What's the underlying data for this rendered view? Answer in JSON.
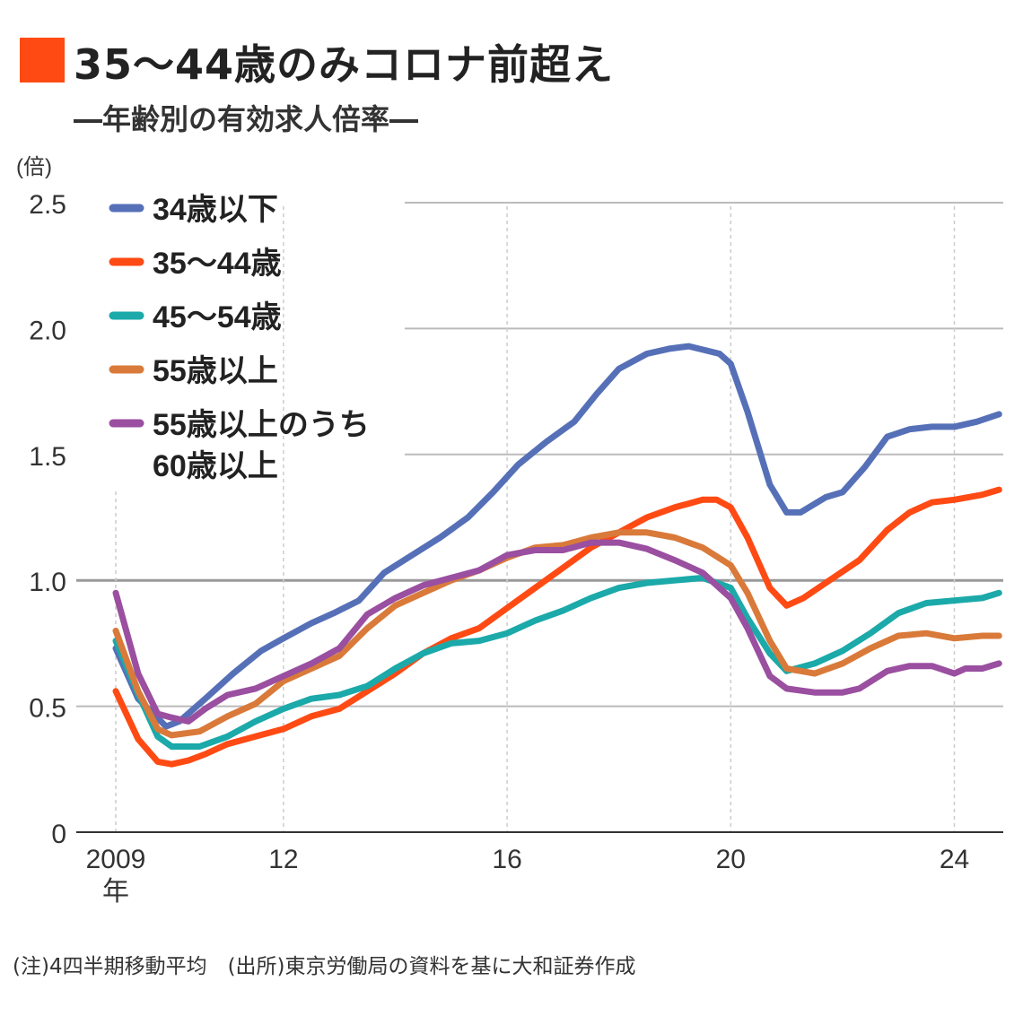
{
  "title": "35〜44歳のみコロナ前超え",
  "subtitle": "―年齢別の有効求人倍率―",
  "footer": "(注)4四半期移動平均　(出所)東京労働局の資料を基に大和証券作成",
  "chart_data": {
    "type": "line",
    "title": "35〜44歳のみコロナ前超え",
    "subtitle": "年齢別の有効求人倍率",
    "ylabel": "(倍)",
    "xlabel": "",
    "ylim": [
      0,
      2.5
    ],
    "xlim": [
      2009,
      2024.8
    ],
    "yticks": [
      {
        "v": 0,
        "label": "0"
      },
      {
        "v": 0.5,
        "label": "0.5"
      },
      {
        "v": 1.0,
        "label": "1.0"
      },
      {
        "v": 1.5,
        "label": "1.5"
      },
      {
        "v": 2.0,
        "label": "2.0"
      },
      {
        "v": 2.5,
        "label": "2.5"
      }
    ],
    "xticks": [
      {
        "v": 2009,
        "label": "2009",
        "sub": "年"
      },
      {
        "v": 2012,
        "label": "12"
      },
      {
        "v": 2016,
        "label": "16"
      },
      {
        "v": 2020,
        "label": "20"
      },
      {
        "v": 2024,
        "label": "24"
      }
    ],
    "grid": true,
    "legend": "top-left",
    "series": [
      {
        "name": "34歳以下",
        "color": "#5670b8",
        "points": [
          [
            2009,
            0.73
          ],
          [
            2009.4,
            0.53
          ],
          [
            2009.9,
            0.42
          ],
          [
            2010.14,
            0.44
          ],
          [
            2010.6,
            0.53
          ],
          [
            2011.1,
            0.63
          ],
          [
            2011.6,
            0.72
          ],
          [
            2012,
            0.77
          ],
          [
            2012.5,
            0.83
          ],
          [
            2012.9,
            0.87
          ],
          [
            2013.35,
            0.92
          ],
          [
            2013.8,
            1.03
          ],
          [
            2014.3,
            1.1
          ],
          [
            2014.8,
            1.17
          ],
          [
            2015.3,
            1.25
          ],
          [
            2015.75,
            1.35
          ],
          [
            2016.2,
            1.46
          ],
          [
            2016.7,
            1.55
          ],
          [
            2017.2,
            1.63
          ],
          [
            2017.6,
            1.74
          ],
          [
            2018,
            1.84
          ],
          [
            2018.5,
            1.9
          ],
          [
            2018.9,
            1.92
          ],
          [
            2019.25,
            1.93
          ],
          [
            2019.8,
            1.9
          ],
          [
            2020,
            1.86
          ],
          [
            2020.3,
            1.67
          ],
          [
            2020.7,
            1.38
          ],
          [
            2021,
            1.27
          ],
          [
            2021.25,
            1.27
          ],
          [
            2021.7,
            1.33
          ],
          [
            2022,
            1.35
          ],
          [
            2022.4,
            1.45
          ],
          [
            2022.8,
            1.57
          ],
          [
            2023.2,
            1.6
          ],
          [
            2023.6,
            1.61
          ],
          [
            2024,
            1.61
          ],
          [
            2024.4,
            1.63
          ],
          [
            2024.8,
            1.66
          ]
        ]
      },
      {
        "name": "35〜44歳",
        "color": "#ff4a14",
        "points": [
          [
            2009,
            0.56
          ],
          [
            2009.4,
            0.37
          ],
          [
            2009.75,
            0.28
          ],
          [
            2010,
            0.27
          ],
          [
            2010.3,
            0.285
          ],
          [
            2010.6,
            0.31
          ],
          [
            2011,
            0.35
          ],
          [
            2011.5,
            0.38
          ],
          [
            2012,
            0.41
          ],
          [
            2012.5,
            0.46
          ],
          [
            2013,
            0.49
          ],
          [
            2013.5,
            0.56
          ],
          [
            2014,
            0.63
          ],
          [
            2014.5,
            0.71
          ],
          [
            2015,
            0.77
          ],
          [
            2015.5,
            0.81
          ],
          [
            2016,
            0.89
          ],
          [
            2016.5,
            0.97
          ],
          [
            2017,
            1.05
          ],
          [
            2017.5,
            1.13
          ],
          [
            2018,
            1.19
          ],
          [
            2018.5,
            1.25
          ],
          [
            2019,
            1.29
          ],
          [
            2019.5,
            1.32
          ],
          [
            2019.75,
            1.32
          ],
          [
            2020,
            1.29
          ],
          [
            2020.3,
            1.17
          ],
          [
            2020.7,
            0.97
          ],
          [
            2021,
            0.9
          ],
          [
            2021.3,
            0.93
          ],
          [
            2021.7,
            0.99
          ],
          [
            2022.3,
            1.08
          ],
          [
            2022.8,
            1.2
          ],
          [
            2023.2,
            1.27
          ],
          [
            2023.6,
            1.31
          ],
          [
            2024,
            1.32
          ],
          [
            2024.5,
            1.34
          ],
          [
            2024.8,
            1.36
          ]
        ]
      },
      {
        "name": "45〜54歳",
        "color": "#1ba9a9",
        "points": [
          [
            2009,
            0.76
          ],
          [
            2009.4,
            0.55
          ],
          [
            2009.75,
            0.38
          ],
          [
            2010,
            0.34
          ],
          [
            2010.5,
            0.34
          ],
          [
            2011,
            0.38
          ],
          [
            2011.5,
            0.44
          ],
          [
            2012,
            0.49
          ],
          [
            2012.5,
            0.53
          ],
          [
            2013,
            0.545
          ],
          [
            2013.5,
            0.58
          ],
          [
            2014,
            0.65
          ],
          [
            2014.5,
            0.71
          ],
          [
            2015,
            0.75
          ],
          [
            2015.5,
            0.76
          ],
          [
            2016,
            0.79
          ],
          [
            2016.5,
            0.84
          ],
          [
            2017,
            0.88
          ],
          [
            2017.5,
            0.93
          ],
          [
            2018,
            0.97
          ],
          [
            2018.5,
            0.99
          ],
          [
            2019,
            1.0
          ],
          [
            2019.5,
            1.01
          ],
          [
            2020,
            0.97
          ],
          [
            2020.3,
            0.85
          ],
          [
            2020.7,
            0.71
          ],
          [
            2021,
            0.64
          ],
          [
            2021.5,
            0.67
          ],
          [
            2022,
            0.72
          ],
          [
            2022.5,
            0.79
          ],
          [
            2023,
            0.87
          ],
          [
            2023.5,
            0.91
          ],
          [
            2024,
            0.92
          ],
          [
            2024.5,
            0.93
          ],
          [
            2024.8,
            0.95
          ]
        ]
      },
      {
        "name": "55歳以上",
        "color": "#d97a3a",
        "points": [
          [
            2009,
            0.8
          ],
          [
            2009.4,
            0.56
          ],
          [
            2009.75,
            0.41
          ],
          [
            2010,
            0.385
          ],
          [
            2010.5,
            0.4
          ],
          [
            2011,
            0.46
          ],
          [
            2011.5,
            0.51
          ],
          [
            2012,
            0.6
          ],
          [
            2012.5,
            0.65
          ],
          [
            2013,
            0.7
          ],
          [
            2013.5,
            0.81
          ],
          [
            2014,
            0.9
          ],
          [
            2014.5,
            0.95
          ],
          [
            2015,
            1.0
          ],
          [
            2015.5,
            1.04
          ],
          [
            2016,
            1.09
          ],
          [
            2016.5,
            1.13
          ],
          [
            2017,
            1.14
          ],
          [
            2017.5,
            1.17
          ],
          [
            2018,
            1.19
          ],
          [
            2018.5,
            1.19
          ],
          [
            2019,
            1.17
          ],
          [
            2019.5,
            1.13
          ],
          [
            2020,
            1.06
          ],
          [
            2020.3,
            0.95
          ],
          [
            2020.7,
            0.76
          ],
          [
            2021,
            0.65
          ],
          [
            2021.5,
            0.63
          ],
          [
            2022,
            0.67
          ],
          [
            2022.5,
            0.73
          ],
          [
            2023,
            0.78
          ],
          [
            2023.5,
            0.79
          ],
          [
            2024,
            0.77
          ],
          [
            2024.5,
            0.78
          ],
          [
            2024.8,
            0.78
          ]
        ]
      },
      {
        "name": "55歳以上のうち\n60歳以上",
        "name_lines": [
          "55歳以上のうち",
          "60歳以上"
        ],
        "color": "#9a4fa0",
        "points": [
          [
            2009,
            0.95
          ],
          [
            2009.4,
            0.63
          ],
          [
            2009.75,
            0.47
          ],
          [
            2010,
            0.455
          ],
          [
            2010.3,
            0.44
          ],
          [
            2010.6,
            0.49
          ],
          [
            2011,
            0.545
          ],
          [
            2011.5,
            0.57
          ],
          [
            2012,
            0.62
          ],
          [
            2012.5,
            0.67
          ],
          [
            2013,
            0.73
          ],
          [
            2013.5,
            0.865
          ],
          [
            2014,
            0.93
          ],
          [
            2014.5,
            0.98
          ],
          [
            2015,
            1.01
          ],
          [
            2015.5,
            1.04
          ],
          [
            2016,
            1.1
          ],
          [
            2016.5,
            1.12
          ],
          [
            2017,
            1.12
          ],
          [
            2017.5,
            1.15
          ],
          [
            2018,
            1.15
          ],
          [
            2018.5,
            1.125
          ],
          [
            2019,
            1.08
          ],
          [
            2019.5,
            1.03
          ],
          [
            2020,
            0.93
          ],
          [
            2020.3,
            0.81
          ],
          [
            2020.7,
            0.62
          ],
          [
            2021,
            0.57
          ],
          [
            2021.5,
            0.555
          ],
          [
            2022,
            0.555
          ],
          [
            2022.3,
            0.57
          ],
          [
            2022.8,
            0.64
          ],
          [
            2023.2,
            0.66
          ],
          [
            2023.6,
            0.66
          ],
          [
            2024,
            0.63
          ],
          [
            2024.2,
            0.65
          ],
          [
            2024.5,
            0.65
          ],
          [
            2024.8,
            0.67
          ]
        ]
      }
    ]
  }
}
